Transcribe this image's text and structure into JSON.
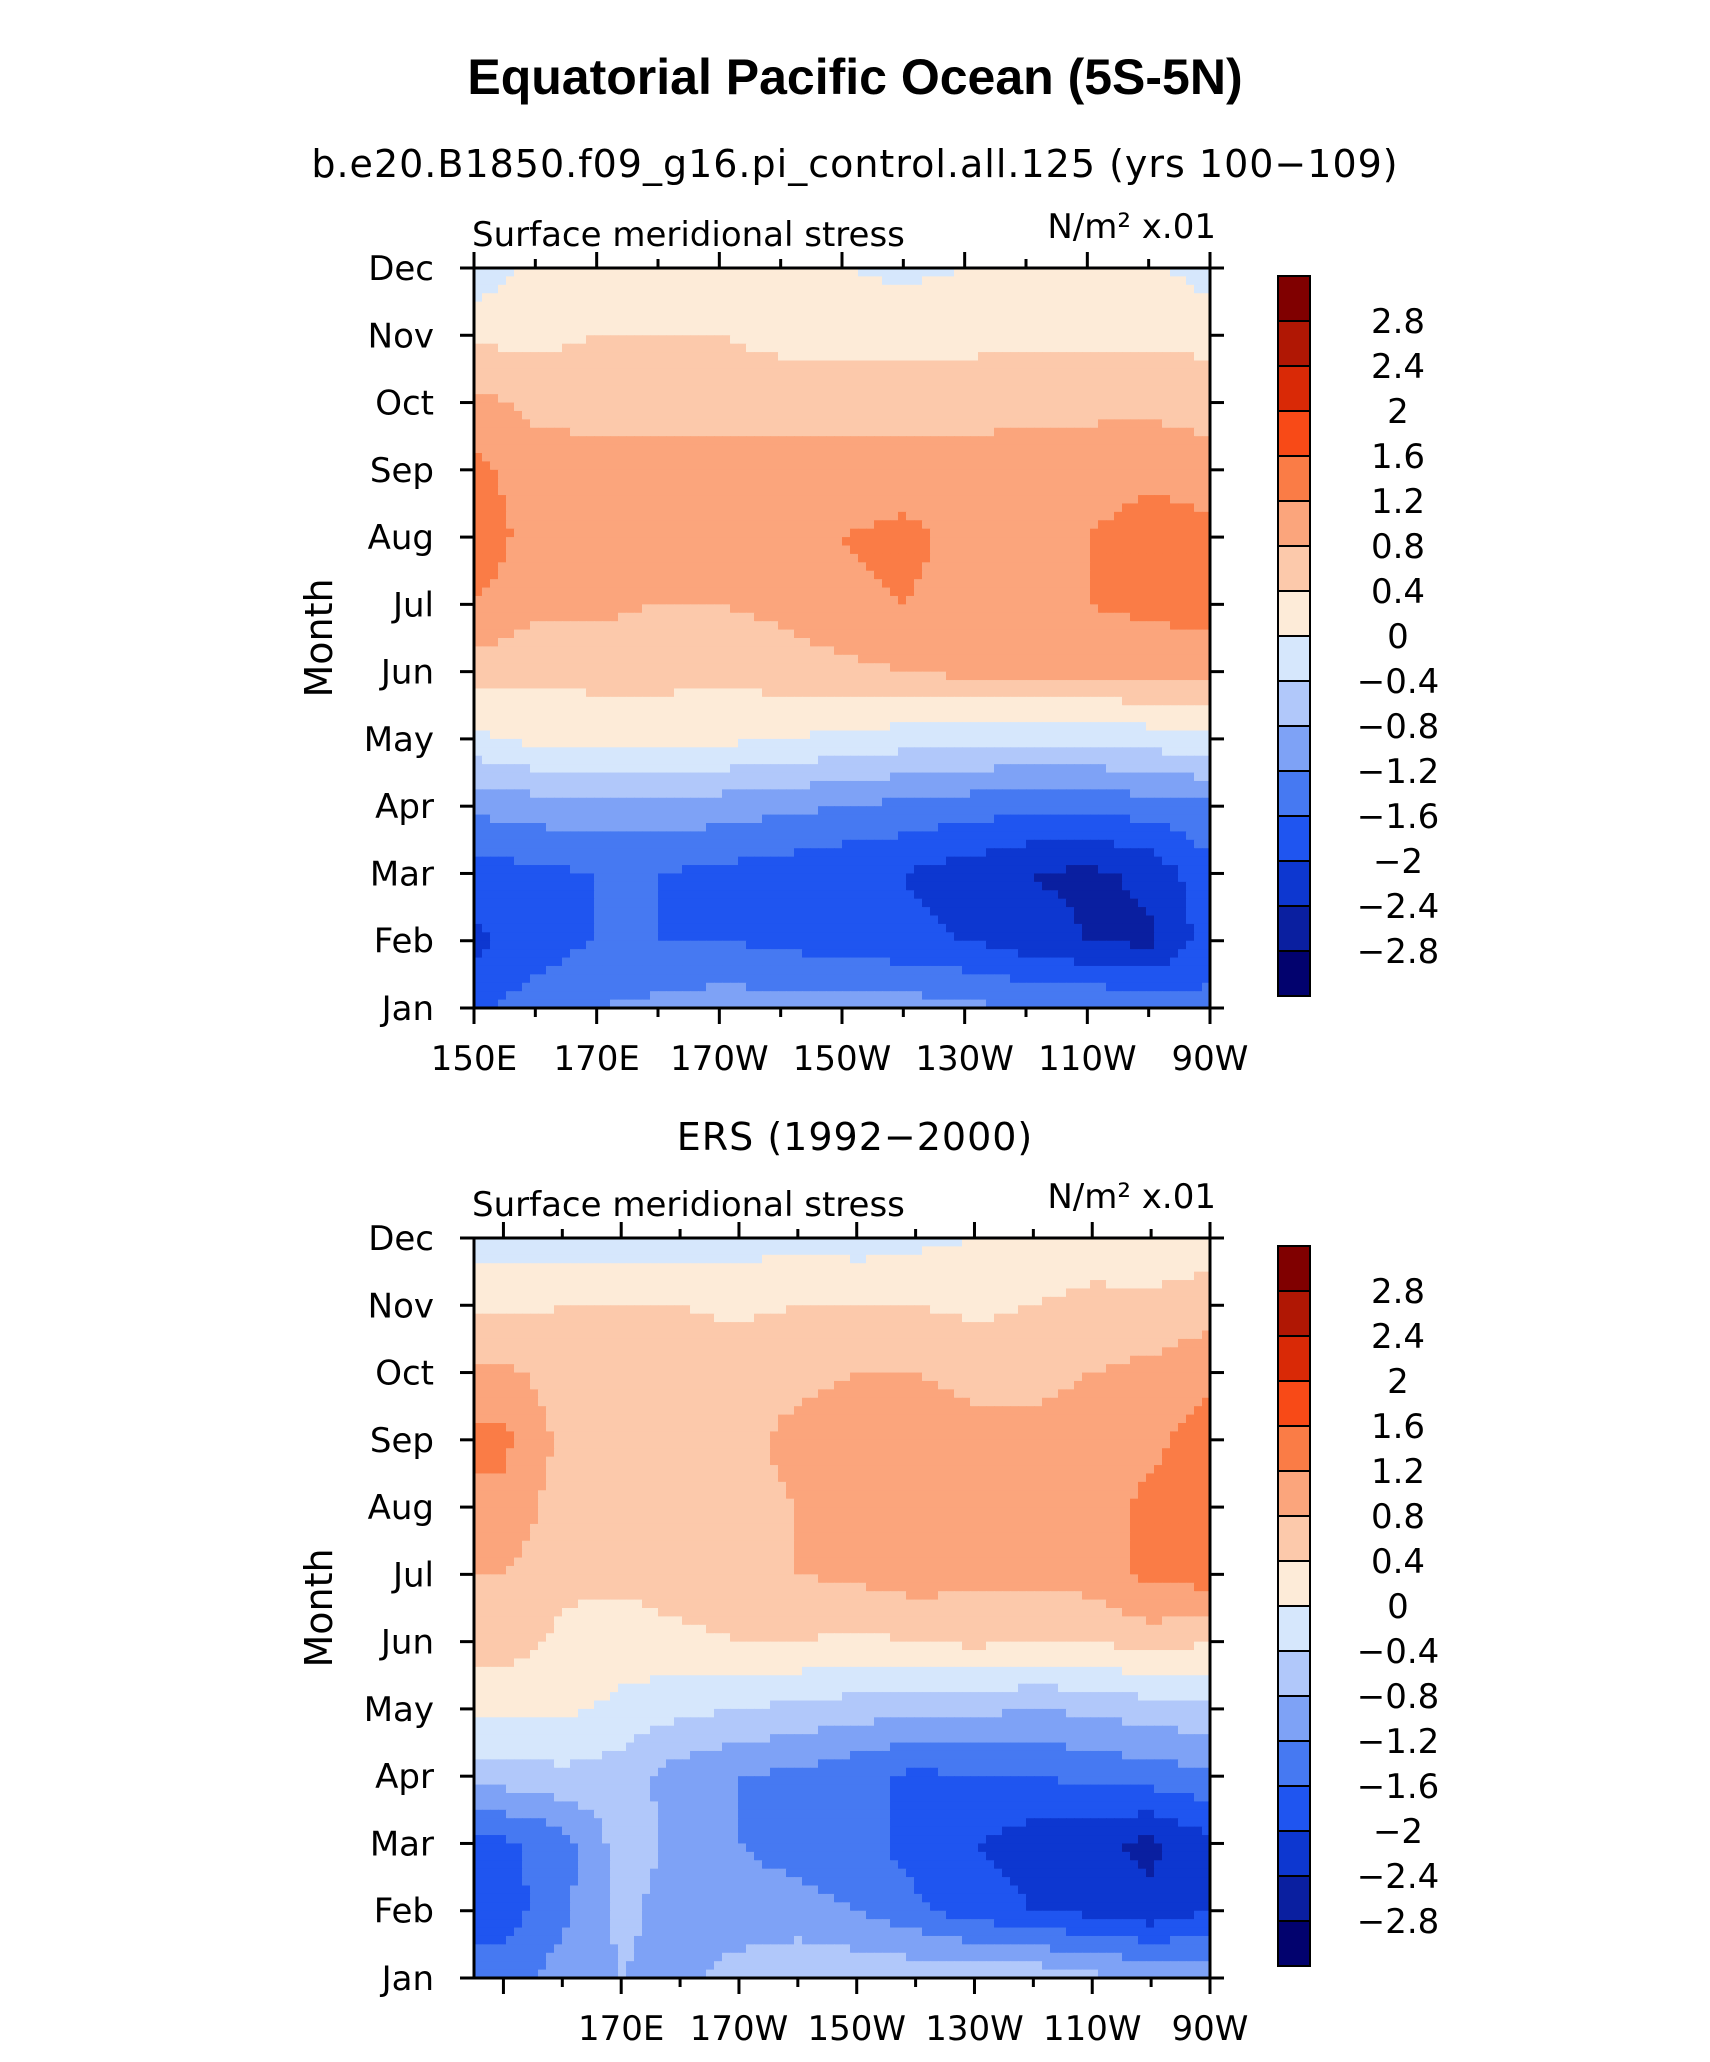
{
  "title": "Equatorial Pacific Ocean (5S-5N)",
  "colormap": [
    "#02026e",
    "#0a1fa0",
    "#0d37d0",
    "#1f55f0",
    "#4679f2",
    "#7ea2f6",
    "#b1c8fa",
    "#d6e7fc",
    "#fdebd8",
    "#fcc9ab",
    "#fba57c",
    "#fa7c46",
    "#f84a17",
    "#d92906",
    "#b01704",
    "#800000"
  ],
  "chart_data": [
    {
      "type": "heatmap",
      "title": "b.e20.B1850.f09_g16.pi_control.all.125 (yrs 100−109)",
      "left_label": "Surface meridional stress",
      "right_label": "N/m² x.01",
      "xlabel": "",
      "ylabel": "Month",
      "x_tick_labels": [
        "150E",
        "170E",
        "170W",
        "150W",
        "130W",
        "110W",
        "90W"
      ],
      "y_tick_labels": [
        "Jan",
        "Feb",
        "Mar",
        "Apr",
        "May",
        "Jun",
        "Jul",
        "Aug",
        "Sep",
        "Oct",
        "Nov",
        "Dec"
      ],
      "colorbar_labels": [
        "2.8",
        "2.4",
        "2",
        "1.6",
        "1.2",
        "0.8",
        "0.4",
        "0",
        "−0.4",
        "−0.8",
        "−1.2",
        "−1.6",
        "−2",
        "−2.4",
        "−2.8"
      ],
      "x_lon": [
        150,
        160,
        170,
        180,
        190,
        200,
        210,
        220,
        230,
        240,
        250,
        260,
        270
      ],
      "values": [
        [
          -1.7,
          -1.4,
          -1.2,
          -1.1,
          -1.0,
          -1.0,
          -1.0,
          -1.0,
          -1.1,
          -1.2,
          -1.2,
          -1.3,
          -1.5
        ],
        [
          -2.1,
          -1.8,
          -1.6,
          -1.6,
          -1.6,
          -1.7,
          -1.8,
          -1.9,
          -2.0,
          -2.2,
          -2.4,
          -2.5,
          -1.8
        ],
        [
          -1.8,
          -1.7,
          -1.6,
          -1.6,
          -1.7,
          -1.8,
          -1.9,
          -2.0,
          -2.2,
          -2.4,
          -2.5,
          -2.3,
          -1.7
        ],
        [
          -1.1,
          -1.0,
          -0.9,
          -0.9,
          -1.0,
          -1.1,
          -1.2,
          -1.3,
          -1.4,
          -1.5,
          -1.5,
          -1.4,
          -1.3
        ],
        [
          -0.1,
          0.1,
          0.2,
          0.2,
          0.1,
          0.0,
          -0.1,
          -0.2,
          -0.3,
          -0.3,
          -0.3,
          -0.2,
          -0.1
        ],
        [
          0.6,
          0.5,
          0.5,
          0.5,
          0.5,
          0.6,
          0.7,
          0.8,
          0.9,
          0.9,
          0.9,
          0.9,
          0.9
        ],
        [
          1.2,
          0.9,
          0.9,
          0.8,
          0.8,
          0.9,
          1.1,
          1.2,
          1.1,
          1.1,
          1.2,
          1.3,
          1.4
        ],
        [
          1.5,
          1.0,
          1.0,
          1.0,
          1.0,
          1.1,
          1.2,
          1.3,
          1.1,
          1.1,
          1.2,
          1.4,
          1.3
        ],
        [
          1.3,
          1.0,
          1.0,
          1.0,
          1.0,
          1.0,
          1.0,
          1.0,
          1.0,
          1.0,
          1.0,
          1.1,
          1.0
        ],
        [
          0.9,
          0.7,
          0.6,
          0.6,
          0.6,
          0.6,
          0.6,
          0.6,
          0.6,
          0.7,
          0.7,
          0.7,
          0.6
        ],
        [
          0.3,
          0.3,
          0.4,
          0.4,
          0.4,
          0.3,
          0.3,
          0.3,
          0.3,
          0.3,
          0.3,
          0.3,
          0.3
        ],
        [
          -0.3,
          0.1,
          0.2,
          0.1,
          0.1,
          0.1,
          0.0,
          -0.1,
          0.0,
          0.1,
          0.1,
          0.1,
          -0.2
        ]
      ]
    },
    {
      "type": "heatmap",
      "title": "ERS (1992−2000)",
      "left_label": "Surface meridional stress",
      "right_label": "N/m² x.01",
      "xlabel": "",
      "ylabel": "Month",
      "x_tick_labels": [
        "170E",
        "170W",
        "150W",
        "130W",
        "110W",
        "90W"
      ],
      "y_tick_labels": [
        "Jan",
        "Feb",
        "Mar",
        "Apr",
        "May",
        "Jun",
        "Jul",
        "Aug",
        "Sep",
        "Oct",
        "Nov",
        "Dec"
      ],
      "colorbar_labels": [
        "2.8",
        "2.4",
        "2",
        "1.6",
        "1.2",
        "0.8",
        "0.4",
        "0",
        "−0.4",
        "−0.8",
        "−1.2",
        "−1.6",
        "−2",
        "−2.4",
        "−2.8"
      ],
      "x_lon": [
        150,
        160,
        170,
        180,
        190,
        200,
        210,
        220,
        230,
        240,
        250,
        260,
        270
      ],
      "values": [
        [
          -1.4,
          -1.0,
          -0.8,
          -0.9,
          -0.6,
          -0.4,
          -0.5,
          -0.5,
          -0.5,
          -0.5,
          -0.7,
          -0.8,
          -0.9
        ],
        [
          -1.8,
          -1.3,
          -0.7,
          -1.0,
          -1.1,
          -1.1,
          -1.2,
          -1.5,
          -1.8,
          -2.0,
          -2.1,
          -2.3,
          -2.0
        ],
        [
          -1.7,
          -1.4,
          -0.6,
          -0.9,
          -1.2,
          -1.3,
          -1.4,
          -1.8,
          -2.0,
          -2.2,
          -2.3,
          -2.5,
          -2.1
        ],
        [
          -0.6,
          -0.5,
          -0.6,
          -1.0,
          -1.2,
          -1.3,
          -1.5,
          -1.7,
          -1.6,
          -1.6,
          -1.5,
          -1.4,
          -1.3
        ],
        [
          0.1,
          0.1,
          -0.1,
          -0.3,
          -0.4,
          -0.5,
          -0.6,
          -0.7,
          -0.7,
          -0.8,
          -0.7,
          -0.6,
          -0.5
        ],
        [
          0.6,
          0.3,
          0.2,
          0.3,
          0.4,
          0.4,
          0.3,
          0.4,
          0.5,
          0.4,
          0.4,
          0.6,
          0.4
        ],
        [
          0.8,
          0.5,
          0.5,
          0.6,
          0.7,
          0.8,
          0.9,
          1.0,
          0.9,
          0.9,
          1.0,
          1.3,
          1.4
        ],
        [
          1.1,
          0.6,
          0.5,
          0.6,
          0.7,
          0.8,
          1.0,
          1.0,
          0.9,
          0.9,
          1.0,
          1.3,
          1.4
        ],
        [
          1.3,
          0.7,
          0.7,
          0.8,
          0.7,
          0.9,
          1.0,
          1.0,
          0.9,
          0.9,
          1.0,
          1.1,
          1.4
        ],
        [
          0.9,
          0.6,
          0.6,
          0.6,
          0.7,
          0.7,
          0.8,
          0.8,
          0.7,
          0.7,
          0.8,
          0.9,
          1.1
        ],
        [
          0.3,
          0.4,
          0.4,
          0.4,
          0.3,
          0.4,
          0.4,
          0.4,
          0.3,
          0.4,
          0.5,
          0.5,
          0.6
        ],
        [
          -0.2,
          -0.2,
          -0.3,
          -0.3,
          -0.2,
          -0.1,
          -0.2,
          -0.1,
          0.0,
          0.1,
          0.2,
          0.1,
          0.2
        ]
      ]
    }
  ]
}
